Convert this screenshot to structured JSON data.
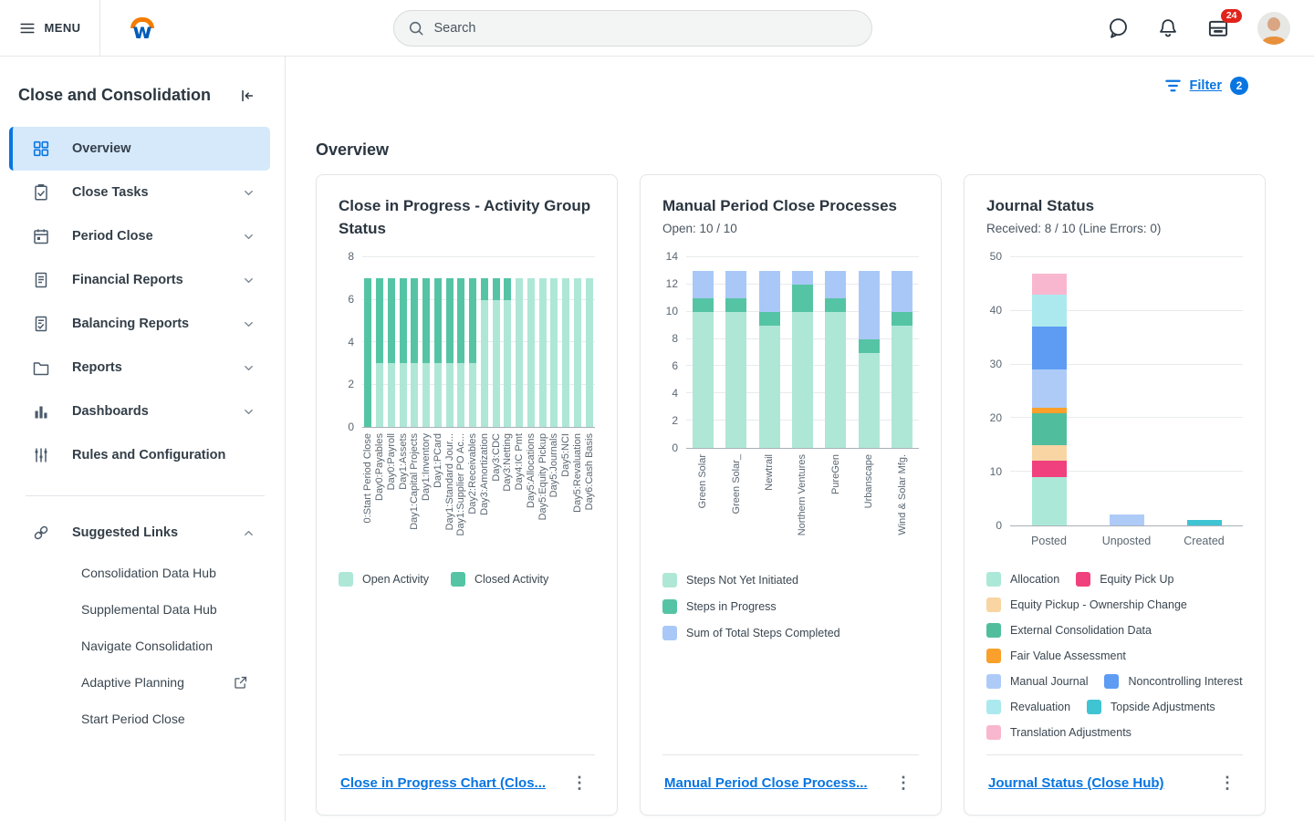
{
  "header": {
    "menu_label": "MENU",
    "search_placeholder": "Search",
    "inbox_badge": "24"
  },
  "sidebar": {
    "title": "Close and Consolidation",
    "items": [
      {
        "label": "Overview",
        "icon": "grid-icon",
        "active": true,
        "expandable": false
      },
      {
        "label": "Close Tasks",
        "icon": "clipboard-check-icon",
        "active": false,
        "expandable": true
      },
      {
        "label": "Period Close",
        "icon": "calendar-icon",
        "active": false,
        "expandable": true
      },
      {
        "label": "Financial Reports",
        "icon": "document-icon",
        "active": false,
        "expandable": true
      },
      {
        "label": "Balancing Reports",
        "icon": "clipboard-list-icon",
        "active": false,
        "expandable": true
      },
      {
        "label": "Reports",
        "icon": "folder-icon",
        "active": false,
        "expandable": true
      },
      {
        "label": "Dashboards",
        "icon": "bar-chart-icon",
        "active": false,
        "expandable": true
      },
      {
        "label": "Rules and Configuration",
        "icon": "sliders-icon",
        "active": false,
        "expandable": false
      }
    ],
    "suggested_links": {
      "label": "Suggested Links",
      "expanded": true,
      "links": [
        {
          "label": "Consolidation Data Hub",
          "external": false
        },
        {
          "label": "Supplemental Data Hub",
          "external": false
        },
        {
          "label": "Navigate Consolidation",
          "external": false
        },
        {
          "label": "Adaptive Planning",
          "external": true
        },
        {
          "label": "Start Period Close",
          "external": false
        }
      ]
    }
  },
  "main": {
    "filter": {
      "label": "Filter",
      "badge": "2"
    },
    "section_title": "Overview"
  },
  "chart_data": [
    {
      "type": "bar",
      "stacked": true,
      "title": "Close in Progress - Activity Group Status",
      "subtitle": "",
      "categories": [
        "0:Start Period Close",
        "Day0:Payables",
        "Day0:Payroll",
        "Day1:Assets",
        "Day1:Capital Projects",
        "Day1:Inventory",
        "Day1:PCard",
        "Day1:Standard Jour...",
        "Day1:Supplier PO Ac...",
        "Day2:Receivables",
        "Day3:Amortization",
        "Day3:CDC",
        "Day3:Netting",
        "Day4:IC Pmt",
        "Day5:Allocations",
        "Day5:Equity Pickup",
        "Day5:Journals",
        "Day5:NCI",
        "Day5:Revaluation",
        "Day6:Cash Basis"
      ],
      "series": [
        {
          "name": "Open Activity",
          "color": "#AFE7D7",
          "values": [
            0,
            3,
            3,
            3,
            3,
            3,
            3,
            3,
            3,
            3,
            6,
            6,
            6,
            7,
            7,
            7,
            7,
            7,
            7,
            7
          ]
        },
        {
          "name": "Closed Activity",
          "color": "#55C4A4",
          "values": [
            7,
            4,
            4,
            4,
            4,
            4,
            4,
            4,
            4,
            4,
            1,
            1,
            1,
            0,
            0,
            0,
            0,
            0,
            0,
            0
          ]
        }
      ],
      "ylim": [
        0,
        8
      ],
      "ytick_step": 2,
      "grid": true,
      "rotated_labels": true,
      "legend_layout": "row",
      "footer_link": "Close in Progress Chart (Clos..."
    },
    {
      "type": "bar",
      "stacked": true,
      "title": "Manual Period Close Processes",
      "subtitle": "Open: 10 / 10",
      "categories": [
        "Green Solar",
        "Green Solar_",
        "Newtrail",
        "Northern Ventures",
        "PureGen",
        "Urbanscape",
        "Wind & Solar Mfg."
      ],
      "series": [
        {
          "name": "Steps Not Yet Initiated",
          "color": "#AFE7D7",
          "values": [
            10,
            10,
            9,
            10,
            10,
            7,
            9
          ]
        },
        {
          "name": "Steps in Progress",
          "color": "#55C4A4",
          "values": [
            1,
            1,
            1,
            2,
            1,
            1,
            1
          ]
        },
        {
          "name": "Sum of Total Steps Completed",
          "color": "#A9C8F7",
          "values": [
            2,
            2,
            3,
            1,
            2,
            5,
            3
          ]
        }
      ],
      "ylim": [
        0,
        14
      ],
      "ytick_step": 2,
      "grid": true,
      "rotated_labels": true,
      "legend_layout": "column",
      "footer_link": "Manual Period Close Process..."
    },
    {
      "type": "bar",
      "stacked": true,
      "title": "Journal Status",
      "subtitle": "Received: 8 / 10 (Line Errors: 0)",
      "categories": [
        "Posted",
        "Unposted",
        "Created"
      ],
      "series": [
        {
          "name": "Allocation",
          "color": "#ACE8D8",
          "values": [
            9,
            0,
            0
          ]
        },
        {
          "name": "Equity Pick Up",
          "color": "#F0417E",
          "values": [
            3,
            0,
            0
          ]
        },
        {
          "name": "Equity Pickup - Ownership Change",
          "color": "#F8D5A3",
          "values": [
            3,
            0,
            0
          ]
        },
        {
          "name": "External Consolidation Data",
          "color": "#50BE9D",
          "values": [
            6,
            0,
            0
          ]
        },
        {
          "name": "Fair Value Assessment",
          "color": "#FAA02B",
          "values": [
            1,
            0,
            0
          ]
        },
        {
          "name": "Manual Journal",
          "color": "#AECBF8",
          "values": [
            7,
            2,
            0
          ]
        },
        {
          "name": "Noncontrolling Interest",
          "color": "#5E9BF3",
          "values": [
            8,
            0,
            0
          ]
        },
        {
          "name": "Revaluation",
          "color": "#ABE9EF",
          "values": [
            6,
            0,
            0
          ]
        },
        {
          "name": "Topside Adjustments",
          "color": "#3FC4D3",
          "values": [
            0,
            0,
            1
          ]
        },
        {
          "name": "Translation Adjustments",
          "color": "#F8B7CF",
          "values": [
            4,
            0,
            0
          ]
        }
      ],
      "ylim": [
        0,
        50
      ],
      "ytick_step": 10,
      "grid": true,
      "rotated_labels": false,
      "legend_layout": "wrap",
      "footer_link": "Journal Status (Close Hub)"
    }
  ]
}
